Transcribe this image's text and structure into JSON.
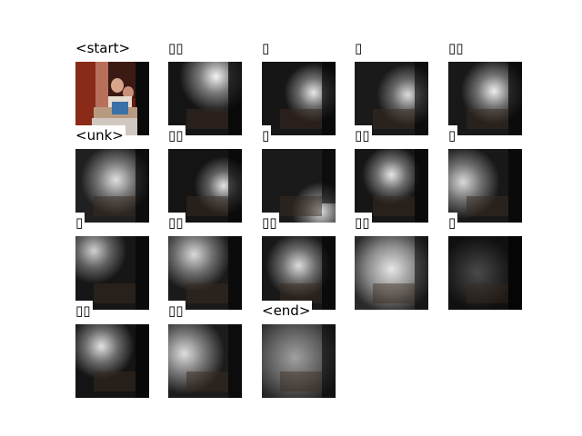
{
  "tokens": [
    "<start>",
    "▯▯",
    "▯",
    "▯",
    "▯▯",
    "<unk>",
    "▯▯",
    "▯",
    "▯▯",
    "▯",
    "▯",
    "▯▯",
    "▯▯",
    "▯▯",
    "▯",
    "▯▯",
    "▯▯",
    "<end>"
  ],
  "attention_focus": [
    "original-image",
    "top-right",
    "right-middle",
    "right-middle",
    "right-middle",
    "center-left",
    "right-middle",
    "bottom-right",
    "center-top",
    "left-wide",
    "top-left",
    "left-top",
    "center",
    "broad-center",
    "dark",
    "left-top",
    "left-wide",
    "diffuse"
  ]
}
